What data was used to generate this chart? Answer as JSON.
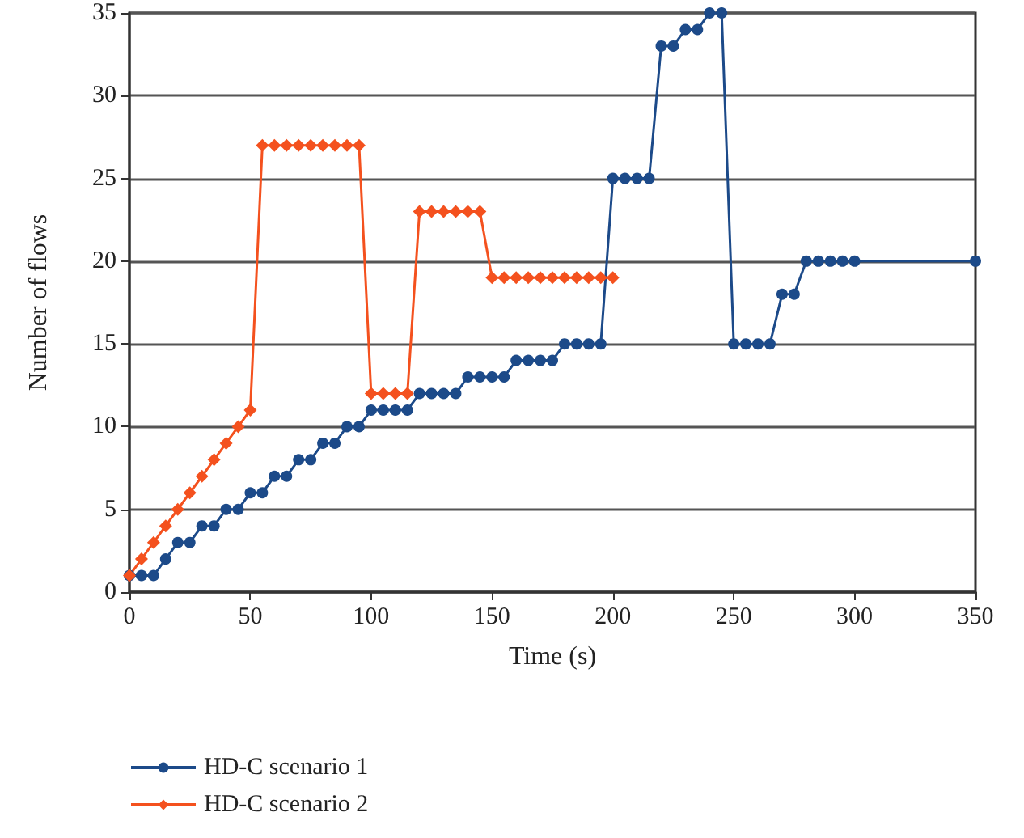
{
  "chart_data": {
    "type": "line",
    "xlabel": "Time (s)",
    "ylabel": "Number of flows",
    "xlim": [
      0,
      350
    ],
    "xticks": [
      0,
      50,
      100,
      150,
      200,
      250,
      300,
      350
    ],
    "ylim": [
      0,
      35
    ],
    "yticks": [
      0,
      5,
      10,
      15,
      20,
      25,
      30,
      35
    ],
    "grid": "y",
    "legend": "bottom left",
    "line_style": "solid",
    "series": [
      {
        "name": "HD-C scenario 1",
        "color": "#1c4a89",
        "marker": "circle",
        "x": [
          0,
          5,
          10,
          15,
          20,
          25,
          30,
          35,
          40,
          45,
          50,
          55,
          60,
          65,
          70,
          75,
          80,
          85,
          90,
          95,
          100,
          105,
          110,
          115,
          120,
          125,
          130,
          135,
          140,
          145,
          150,
          155,
          160,
          165,
          170,
          175,
          180,
          185,
          190,
          195,
          200,
          205,
          210,
          215,
          220,
          225,
          230,
          235,
          240,
          245,
          250,
          255,
          260,
          265,
          270,
          275,
          280,
          285,
          290,
          295,
          300,
          350
        ],
        "values": [
          1,
          1,
          1,
          2,
          3,
          3,
          4,
          4,
          5,
          5,
          6,
          6,
          7,
          7,
          8,
          8,
          9,
          9,
          10,
          10,
          11,
          11,
          11,
          11,
          12,
          12,
          12,
          12,
          13,
          13,
          13,
          13,
          14,
          14,
          14,
          14,
          15,
          15,
          15,
          15,
          25,
          25,
          25,
          25,
          33,
          33,
          34,
          34,
          35,
          35,
          15,
          15,
          15,
          15,
          18,
          18,
          20,
          20,
          20,
          20,
          20,
          20
        ]
      },
      {
        "name": "HD-C scenario 2",
        "color": "#f4511e",
        "marker": "diamond",
        "x": [
          0,
          5,
          10,
          15,
          20,
          25,
          30,
          35,
          40,
          45,
          50,
          55,
          60,
          65,
          70,
          75,
          80,
          85,
          90,
          95,
          100,
          105,
          110,
          115,
          120,
          125,
          130,
          135,
          140,
          145,
          150,
          155,
          160,
          165,
          170,
          175,
          180,
          185,
          190,
          195,
          200
        ],
        "values": [
          1,
          2,
          3,
          4,
          5,
          6,
          7,
          8,
          9,
          10,
          11,
          27,
          27,
          27,
          27,
          27,
          27,
          27,
          27,
          27,
          12,
          12,
          12,
          12,
          23,
          23,
          23,
          23,
          23,
          23,
          19,
          19,
          19,
          19,
          19,
          19,
          19,
          19,
          19,
          19,
          19
        ]
      }
    ]
  }
}
